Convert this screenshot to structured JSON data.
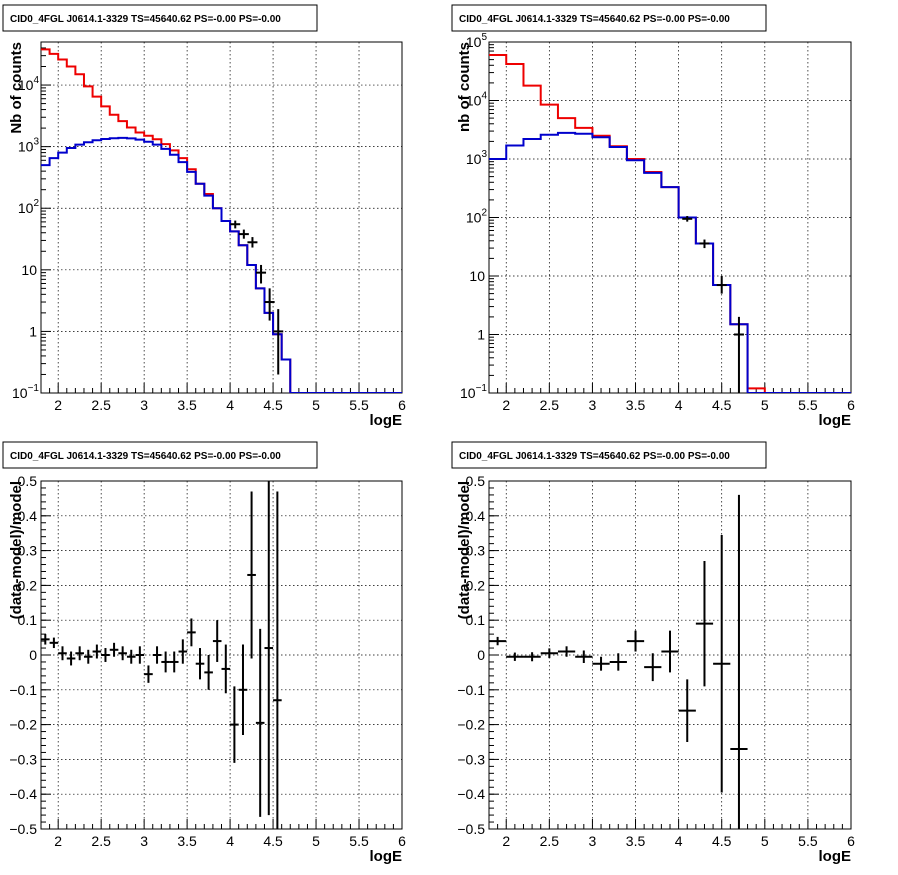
{
  "chart_data": [
    {
      "type": "line",
      "title": "CID0_4FGL J0614.1-3329 TS=45640.62 PS=-0.00 PS=-0.00",
      "xlabel": "logE",
      "ylabel": "Nb of counts",
      "yscale": "log",
      "xlim": [
        1.8,
        6.0
      ],
      "ylim": [
        0.1,
        50000
      ],
      "grid": true,
      "x_ticks": [
        "2",
        "2.5",
        "3",
        "3.5",
        "4",
        "4.5",
        "5",
        "5.5",
        "6"
      ],
      "y_ticks": [
        {
          "v": 0.1,
          "b": "10",
          "e": "−1"
        },
        {
          "v": 1,
          "b": "1",
          "e": ""
        },
        {
          "v": 10,
          "b": "10",
          "e": ""
        },
        {
          "v": 100,
          "b": "10",
          "e": "2"
        },
        {
          "v": 1000,
          "b": "10",
          "e": "3"
        },
        {
          "v": 10000,
          "b": "10",
          "e": "4"
        }
      ],
      "bin_edges": [
        1.8,
        1.9,
        2.0,
        2.1,
        2.2,
        2.3,
        2.4,
        2.5,
        2.6,
        2.7,
        2.8,
        2.9,
        3.0,
        3.1,
        3.2,
        3.3,
        3.4,
        3.5,
        3.6,
        3.7,
        3.8,
        3.9,
        4.0,
        4.1,
        4.2,
        4.3,
        4.4,
        4.5,
        4.6,
        4.7,
        4.8,
        4.9,
        5.0,
        5.1,
        5.2,
        5.3,
        5.4,
        5.5,
        5.6,
        5.7,
        5.8,
        5.9,
        6.0
      ],
      "series": [
        {
          "color": "#ee0000",
          "values": [
            38000,
            32000,
            26000,
            20000,
            15000,
            9500,
            6500,
            4500,
            3300,
            2600,
            2050,
            1700,
            1500,
            1320,
            1100,
            870,
            650,
            430,
            250,
            170,
            100,
            62,
            42,
            25,
            12,
            5,
            2,
            0.9,
            0.35,
            0.1,
            0.1,
            0.1,
            0.1,
            0.1,
            0.1,
            0.1,
            0.1,
            0.1,
            0.1,
            0.1,
            0.1,
            0.1
          ]
        },
        {
          "color": "#0000cc",
          "values": [
            500,
            650,
            800,
            950,
            1080,
            1180,
            1270,
            1330,
            1370,
            1390,
            1360,
            1300,
            1200,
            1080,
            920,
            740,
            560,
            390,
            250,
            160,
            100,
            62,
            42,
            25,
            12,
            5,
            2,
            0.9,
            0.35,
            0.1,
            0.1,
            0.1,
            0.1,
            0.1,
            0.1,
            0.1,
            0.1,
            0.1,
            0.1,
            0.1,
            0.1,
            0.1
          ]
        }
      ],
      "points": [
        {
          "x": 4.06,
          "y": 55,
          "ylo": 47,
          "yhi": 63
        },
        {
          "x": 4.16,
          "y": 38,
          "ylo": 32,
          "yhi": 45
        },
        {
          "x": 4.26,
          "y": 28,
          "ylo": 23,
          "yhi": 34
        },
        {
          "x": 4.36,
          "y": 9,
          "ylo": 6,
          "yhi": 12
        },
        {
          "x": 4.46,
          "y": 3,
          "ylo": 1.5,
          "yhi": 5
        },
        {
          "x": 4.56,
          "y": 1,
          "ylo": 0.2,
          "yhi": 2.3
        }
      ]
    },
    {
      "type": "line",
      "title": "CID0_4FGL J0614.1-3329 TS=45640.62 PS=-0.00 PS=-0.00",
      "xlabel": "logE",
      "ylabel": "nb of counts",
      "yscale": "log",
      "xlim": [
        1.8,
        6.0
      ],
      "ylim": [
        0.1,
        100000
      ],
      "grid": true,
      "x_ticks": [
        "2",
        "2.5",
        "3",
        "3.5",
        "4",
        "4.5",
        "5",
        "5.5",
        "6"
      ],
      "y_ticks": [
        {
          "v": 0.1,
          "b": "10",
          "e": "−1"
        },
        {
          "v": 1,
          "b": "1",
          "e": ""
        },
        {
          "v": 10,
          "b": "10",
          "e": ""
        },
        {
          "v": 100,
          "b": "10",
          "e": "2"
        },
        {
          "v": 1000,
          "b": "10",
          "e": "3"
        },
        {
          "v": 10000,
          "b": "10",
          "e": "4"
        },
        {
          "v": 100000,
          "b": "10",
          "e": "5"
        }
      ],
      "bin_edges": [
        1.8,
        2.0,
        2.2,
        2.4,
        2.6,
        2.8,
        3.0,
        3.2,
        3.4,
        3.6,
        3.8,
        4.0,
        4.2,
        4.4,
        4.6,
        4.8,
        5.0,
        5.2,
        5.4,
        5.6,
        5.8,
        6.0
      ],
      "series": [
        {
          "color": "#ee0000",
          "values": [
            60000,
            42000,
            18000,
            8500,
            5000,
            3400,
            2500,
            1650,
            1000,
            600,
            330,
            100,
            36,
            7,
            1.5,
            0.12,
            0.1,
            0.1,
            0.1,
            0.1,
            0.1
          ]
        },
        {
          "color": "#0000cc",
          "values": [
            1000,
            1700,
            2200,
            2600,
            2800,
            2700,
            2350,
            1600,
            950,
            580,
            330,
            100,
            36,
            7,
            1.5,
            0.1,
            0.1,
            0.1,
            0.1,
            0.1,
            0.1
          ]
        }
      ],
      "points": [
        {
          "x": 4.1,
          "y": 95,
          "ylo": 85,
          "yhi": 106
        },
        {
          "x": 4.3,
          "y": 36,
          "ylo": 30,
          "yhi": 42
        },
        {
          "x": 4.5,
          "y": 7,
          "ylo": 5,
          "yhi": 10
        },
        {
          "x": 4.7,
          "y": 1,
          "ylo": 0.1,
          "yhi": 2
        }
      ]
    },
    {
      "type": "scatter",
      "title": "CID0_4FGL J0614.1-3329 TS=45640.62 PS=-0.00 PS=-0.00",
      "xlabel": "logE",
      "ylabel": "(data-model)/model",
      "xlim": [
        1.8,
        6.0
      ],
      "ylim": [
        -0.5,
        0.5
      ],
      "grid": true,
      "x_ticks": [
        "2",
        "2.5",
        "3",
        "3.5",
        "4",
        "4.5",
        "5",
        "5.5",
        "6"
      ],
      "y_ticks": [
        "−0.5",
        "−0.4",
        "−0.3",
        "−0.2",
        "−0.1",
        "0",
        "0.1",
        "0.2",
        "0.3",
        "0.4",
        "0.5"
      ],
      "points": [
        {
          "x": 1.85,
          "y": 0.045,
          "err": 0.015,
          "xw": 0.05
        },
        {
          "x": 1.95,
          "y": 0.035,
          "err": 0.015,
          "xw": 0.05
        },
        {
          "x": 2.05,
          "y": 0.005,
          "err": 0.02,
          "xw": 0.05
        },
        {
          "x": 2.15,
          "y": -0.01,
          "err": 0.02,
          "xw": 0.05
        },
        {
          "x": 2.25,
          "y": 0.005,
          "err": 0.02,
          "xw": 0.05
        },
        {
          "x": 2.35,
          "y": -0.005,
          "err": 0.02,
          "xw": 0.05
        },
        {
          "x": 2.45,
          "y": 0.01,
          "err": 0.02,
          "xw": 0.05
        },
        {
          "x": 2.55,
          "y": 0.0,
          "err": 0.02,
          "xw": 0.05
        },
        {
          "x": 2.65,
          "y": 0.015,
          "err": 0.02,
          "xw": 0.05
        },
        {
          "x": 2.75,
          "y": 0.005,
          "err": 0.02,
          "xw": 0.05
        },
        {
          "x": 2.85,
          "y": -0.005,
          "err": 0.02,
          "xw": 0.05
        },
        {
          "x": 2.95,
          "y": 0.0,
          "err": 0.025,
          "xw": 0.05
        },
        {
          "x": 3.05,
          "y": -0.055,
          "err": 0.025,
          "xw": 0.05
        },
        {
          "x": 3.15,
          "y": 0.0,
          "err": 0.025,
          "xw": 0.05
        },
        {
          "x": 3.25,
          "y": -0.02,
          "err": 0.03,
          "xw": 0.05
        },
        {
          "x": 3.35,
          "y": -0.02,
          "err": 0.03,
          "xw": 0.05
        },
        {
          "x": 3.45,
          "y": 0.01,
          "err": 0.035,
          "xw": 0.05
        },
        {
          "x": 3.55,
          "y": 0.065,
          "err": 0.04,
          "xw": 0.05
        },
        {
          "x": 3.65,
          "y": -0.025,
          "err": 0.045,
          "xw": 0.05
        },
        {
          "x": 3.75,
          "y": -0.05,
          "err": 0.05,
          "xw": 0.05
        },
        {
          "x": 3.85,
          "y": 0.04,
          "err": 0.06,
          "xw": 0.05
        },
        {
          "x": 3.95,
          "y": -0.04,
          "err": 0.07,
          "xw": 0.05
        },
        {
          "x": 4.05,
          "y": -0.2,
          "err": 0.11,
          "xw": 0.05
        },
        {
          "x": 4.15,
          "y": -0.1,
          "err": 0.13,
          "xw": 0.05
        },
        {
          "x": 4.25,
          "y": 0.23,
          "err": 0.24,
          "xw": 0.05
        },
        {
          "x": 4.35,
          "y": -0.195,
          "err": 0.27,
          "xw": 0.05
        },
        {
          "x": 4.45,
          "y": 0.02,
          "err": 0.48,
          "xw": 0.05
        },
        {
          "x": 4.55,
          "y": -0.13,
          "err": 0.6,
          "xw": 0.05
        }
      ]
    },
    {
      "type": "scatter",
      "title": "CID0_4FGL J0614.1-3329 TS=45640.62 PS=-0.00 PS=-0.00",
      "xlabel": "logE",
      "ylabel": "(data-model)/model",
      "xlim": [
        1.8,
        6.0
      ],
      "ylim": [
        -0.5,
        0.5
      ],
      "grid": true,
      "x_ticks": [
        "2",
        "2.5",
        "3",
        "3.5",
        "4",
        "4.5",
        "5",
        "5.5",
        "6"
      ],
      "y_ticks": [
        "−0.5",
        "−0.4",
        "−0.3",
        "−0.2",
        "−0.1",
        "0",
        "0.1",
        "0.2",
        "0.3",
        "0.4",
        "0.5"
      ],
      "points": [
        {
          "x": 1.9,
          "y": 0.04,
          "err": 0.012,
          "xw": 0.1
        },
        {
          "x": 2.1,
          "y": -0.005,
          "err": 0.012,
          "xw": 0.1
        },
        {
          "x": 2.3,
          "y": -0.005,
          "err": 0.013,
          "xw": 0.1
        },
        {
          "x": 2.5,
          "y": 0.005,
          "err": 0.014,
          "xw": 0.1
        },
        {
          "x": 2.7,
          "y": 0.01,
          "err": 0.015,
          "xw": 0.1
        },
        {
          "x": 2.9,
          "y": -0.005,
          "err": 0.018,
          "xw": 0.1
        },
        {
          "x": 3.1,
          "y": -0.025,
          "err": 0.02,
          "xw": 0.1
        },
        {
          "x": 3.3,
          "y": -0.02,
          "err": 0.025,
          "xw": 0.1
        },
        {
          "x": 3.5,
          "y": 0.04,
          "err": 0.03,
          "xw": 0.1
        },
        {
          "x": 3.7,
          "y": -0.035,
          "err": 0.04,
          "xw": 0.1
        },
        {
          "x": 3.9,
          "y": 0.01,
          "err": 0.06,
          "xw": 0.1
        },
        {
          "x": 4.1,
          "y": -0.16,
          "err": 0.09,
          "xw": 0.1
        },
        {
          "x": 4.3,
          "y": 0.09,
          "err": 0.18,
          "xw": 0.1
        },
        {
          "x": 4.5,
          "y": -0.025,
          "err": 0.37,
          "xw": 0.1
        },
        {
          "x": 4.7,
          "y": -0.27,
          "err": 0.73,
          "xw": 0.1
        }
      ]
    }
  ]
}
